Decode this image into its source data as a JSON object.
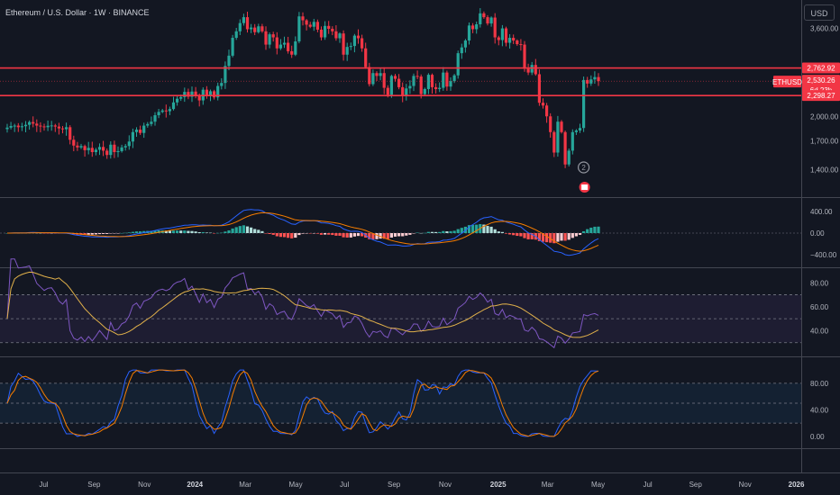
{
  "title": "Ethereum / U.S. Dollar · 1W · BINANCE",
  "currency_button": "USD",
  "colors": {
    "bg": "#131722",
    "up": "#26a69a",
    "down": "#f23645",
    "hline": "#f23645",
    "axis_text": "#b2b5be",
    "grid": "#2a2e39",
    "macd": "#2962ff",
    "signal": "#f57c00",
    "rsi": "#7e57c2",
    "rsi_ma": "#e0b04a",
    "stoch_k": "#2962ff",
    "stoch_d": "#f57c00"
  },
  "chart_data": [
    {
      "type": "candlestick",
      "name": "ETHUSD",
      "x_ticks": [
        "Jul",
        "Sep",
        "Nov",
        "2024",
        "Mar",
        "May",
        "Jul",
        "Sep",
        "Nov",
        "2025",
        "Mar",
        "May",
        "Jul",
        "Sep",
        "Nov",
        "2026"
      ],
      "y_ticks": [
        3600,
        2000,
        1700,
        1400
      ],
      "y_scale": "log",
      "ylim": [
        1180,
        4300
      ],
      "levels": [
        2762.92,
        2298.27
      ],
      "price_labels": {
        "upper": "2,762.92",
        "last": "2,530.26",
        "countdown": "6d 23h",
        "lower": "2,298.27",
        "symbol": "ETHUSD"
      },
      "closes": [
        1855,
        1875,
        1880,
        1860,
        1872,
        1890,
        1925,
        1905,
        1880,
        1870,
        1860,
        1878,
        1882,
        1868,
        1845,
        1835,
        1860,
        1710,
        1645,
        1625,
        1640,
        1595,
        1620,
        1575,
        1600,
        1630,
        1590,
        1545,
        1655,
        1575,
        1585,
        1625,
        1640,
        1690,
        1800,
        1830,
        1790,
        1880,
        1900,
        1930,
        2015,
        2060,
        2080,
        2070,
        2100,
        2195,
        2250,
        2275,
        2355,
        2280,
        2360,
        2300,
        2225,
        2390,
        2300,
        2365,
        2270,
        2450,
        2500,
        2800,
        3000,
        3380,
        3530,
        3730,
        3880,
        3580,
        3620,
        3510,
        3650,
        3530,
        3230,
        3460,
        3390,
        3150,
        3230,
        3270,
        3090,
        3020,
        3300,
        3900,
        3800,
        3690,
        3640,
        3760,
        3570,
        3390,
        3660,
        3590,
        3530,
        3370,
        3480,
        3020,
        3180,
        3200,
        3430,
        3370,
        3150,
        2780,
        2480,
        2670,
        2620,
        2670,
        2420,
        2310,
        2620,
        2570,
        2430,
        2290,
        2410,
        2450,
        2620,
        2610,
        2320,
        2400,
        2640,
        2430,
        2400,
        2420,
        2680,
        2440,
        2530,
        2630,
        3050,
        3170,
        3320,
        3670,
        3580,
        3700,
        3980,
        3880,
        3720,
        3870,
        3390,
        3330,
        3600,
        3270,
        3380,
        3320,
        3240,
        3230,
        2750,
        2680,
        2820,
        2650,
        2190,
        2150,
        2000,
        1800,
        1570,
        1930,
        1800,
        1450,
        1590,
        1800,
        1820,
        1850,
        2550,
        2490,
        2560,
        2600,
        2530
      ],
      "macd_ylim": [
        -600,
        600
      ],
      "macd_ticks": [
        400,
        0,
        -400
      ],
      "rsi_ylim": [
        20,
        90
      ],
      "rsi_ticks": [
        80,
        60,
        40
      ],
      "rsi_bands": [
        70,
        50,
        30
      ],
      "stoch_ylim": [
        -15,
        115
      ],
      "stoch_ticks": [
        80,
        40,
        0
      ],
      "stoch_bands": [
        80,
        50,
        20
      ]
    }
  ]
}
